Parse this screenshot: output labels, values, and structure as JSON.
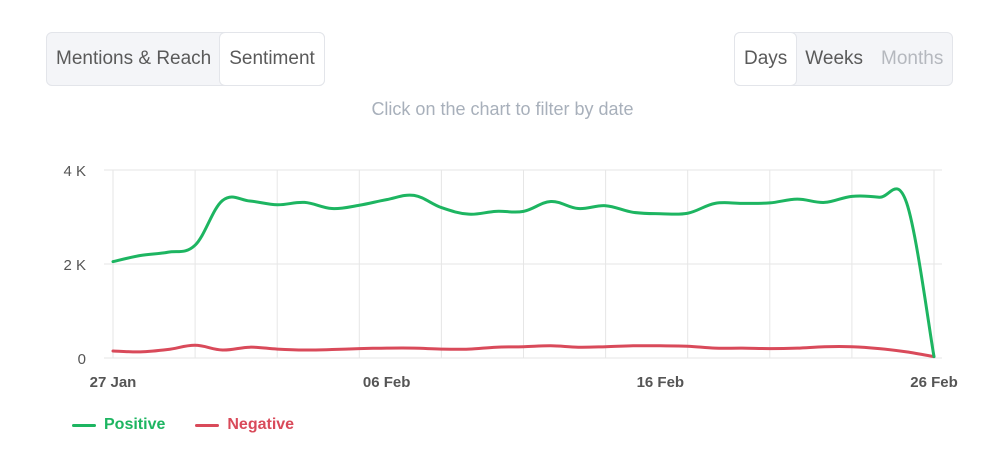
{
  "tabs": {
    "items": [
      {
        "label": "Mentions & Reach",
        "active": false
      },
      {
        "label": "Sentiment",
        "active": true
      }
    ]
  },
  "period": {
    "items": [
      {
        "label": "Days",
        "active": true,
        "disabled": false
      },
      {
        "label": "Weeks",
        "active": false,
        "disabled": false
      },
      {
        "label": "Months",
        "active": false,
        "disabled": true
      }
    ]
  },
  "hint": "Click on the chart to filter by date",
  "colors": {
    "positive": "#1db561",
    "negative": "#d94a5a",
    "grid": "#e6e6e6",
    "axis_text": "#555555"
  },
  "chart_data": {
    "type": "line",
    "title": "",
    "xlabel": "",
    "ylabel": "",
    "ylim": [
      0,
      4000
    ],
    "yticks": [
      {
        "value": 0,
        "label": "0"
      },
      {
        "value": 2000,
        "label": "2 K"
      },
      {
        "value": 4000,
        "label": "4 K"
      }
    ],
    "xticks": [
      {
        "index": 0,
        "label": "27 Jan"
      },
      {
        "index": 10,
        "label": "06 Feb"
      },
      {
        "index": 20,
        "label": "16 Feb"
      },
      {
        "index": 30,
        "label": "26 Feb"
      }
    ],
    "grid": true,
    "legend_position": "bottom-left",
    "x": [
      "27 Jan",
      "28 Jan",
      "29 Jan",
      "30 Jan",
      "31 Jan",
      "01 Feb",
      "02 Feb",
      "03 Feb",
      "04 Feb",
      "05 Feb",
      "06 Feb",
      "07 Feb",
      "08 Feb",
      "09 Feb",
      "10 Feb",
      "11 Feb",
      "12 Feb",
      "13 Feb",
      "14 Feb",
      "15 Feb",
      "16 Feb",
      "17 Feb",
      "18 Feb",
      "19 Feb",
      "20 Feb",
      "21 Feb",
      "22 Feb",
      "23 Feb",
      "24 Feb",
      "25 Feb",
      "26 Feb"
    ],
    "series": [
      {
        "name": "Positive",
        "color": "#1db561",
        "values": [
          2050,
          2180,
          2250,
          2400,
          3350,
          3340,
          3260,
          3310,
          3180,
          3250,
          3370,
          3460,
          3200,
          3060,
          3120,
          3120,
          3330,
          3180,
          3240,
          3100,
          3070,
          3080,
          3290,
          3290,
          3300,
          3380,
          3310,
          3440,
          3420,
          3300,
          30
        ]
      },
      {
        "name": "Negative",
        "color": "#d94a5a",
        "values": [
          150,
          130,
          180,
          270,
          170,
          230,
          190,
          170,
          180,
          200,
          210,
          210,
          190,
          190,
          230,
          240,
          260,
          230,
          240,
          260,
          260,
          250,
          210,
          210,
          200,
          210,
          240,
          240,
          200,
          130,
          30
        ]
      }
    ]
  }
}
